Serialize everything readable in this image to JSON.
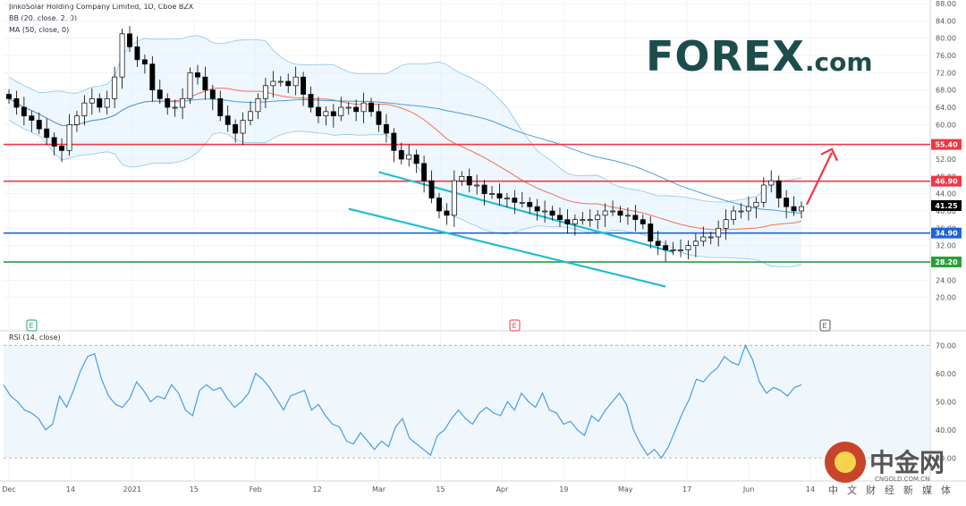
{
  "header": {
    "title": "JinkoSolar Holding Company Limited, 1D, Cboe BZX",
    "bb_label": "BB (20, close, 2, 0)",
    "ma_label": "MA (50, close, 0)",
    "rsi_label": "RSI (14, close)"
  },
  "branding": {
    "logo_text": "FOREX",
    "logo_suffix": ".com",
    "logo_color": "#1c4d4b",
    "logo_accent": "#2aa55a",
    "cn_title": "中金网",
    "cn_url": "CNGOLD.COM.CN",
    "cn_sub": "中文财经新媒体"
  },
  "chart_data": [
    {
      "type": "candlestick",
      "ylim": [
        16,
        88
      ],
      "y_ticks": [
        "20.00",
        "24.00",
        "28.00",
        "32.00",
        "36.00",
        "40.00",
        "44.00",
        "48.00",
        "52.00",
        "56.00",
        "60.00",
        "64.00",
        "68.00",
        "72.00",
        "76.00",
        "80.00",
        "84.00",
        "88.00"
      ],
      "x_ticks": [
        "Dec",
        "14",
        "2021",
        "15",
        "Feb",
        "12",
        "Mar",
        "15",
        "Apr",
        "19",
        "May",
        "17",
        "Jun",
        "14"
      ],
      "last_price": 41.25,
      "close_series": [
        66,
        64,
        62,
        61,
        59,
        57,
        55,
        54,
        60,
        62,
        65,
        66,
        64,
        66,
        71,
        81,
        78,
        75,
        74,
        68,
        66,
        64,
        64,
        66,
        72,
        71,
        68,
        66,
        62,
        60,
        58,
        61,
        63,
        66,
        69,
        70,
        70,
        69,
        71,
        67,
        64,
        62,
        63,
        62,
        64,
        64,
        63,
        65,
        63,
        60,
        58,
        54,
        52,
        53,
        51,
        47,
        43,
        40,
        39,
        47,
        48,
        46,
        46,
        44,
        44,
        43,
        43,
        42,
        42,
        41,
        40,
        40,
        39,
        38,
        37,
        38,
        38,
        38,
        39,
        40,
        40,
        39,
        39,
        38,
        37,
        33,
        32,
        31,
        31,
        31,
        32,
        33,
        34,
        34,
        36,
        38,
        40,
        40,
        41,
        42,
        46,
        47,
        43,
        41,
        40,
        41
      ],
      "horizontal_levels": [
        {
          "value": 55.4,
          "label": "55.40",
          "color": "#f23645"
        },
        {
          "value": 46.9,
          "label": "46.90",
          "color": "#f23645"
        },
        {
          "value": 34.9,
          "label": "34.90",
          "color": "#1e64d6"
        },
        {
          "value": 28.2,
          "label": "28.20",
          "color": "#2b9e3b"
        }
      ],
      "channel_lines": [
        {
          "from": [
            49,
            49.0
          ],
          "to": [
            88,
            30.5
          ]
        },
        {
          "from": [
            45,
            40.5
          ],
          "to": [
            87,
            22.5
          ]
        }
      ],
      "event_markers": [
        {
          "label": "E",
          "color": "#2b9e6a"
        },
        {
          "label": "E",
          "color": "#f23645"
        },
        {
          "label": "E",
          "color": "#555555"
        }
      ],
      "colors": {
        "up": "#ffffff",
        "down": "#000000",
        "bb": "#8ec5f0",
        "ma": "#f0705c",
        "mid": "#4e9be0",
        "channel": "#22bcd6",
        "forecast": "#f23645"
      }
    },
    {
      "type": "line",
      "name": "RSI (14, close)",
      "ylim": [
        25,
        72
      ],
      "y_ticks": [
        "30.00",
        "40.00",
        "50.00",
        "60.00",
        "70.00"
      ],
      "bands": [
        30,
        70
      ],
      "values": [
        56,
        52,
        50,
        47,
        46,
        44,
        40,
        42,
        52,
        48,
        54,
        61,
        66,
        67,
        58,
        52,
        49,
        48,
        51,
        57,
        54,
        50,
        52,
        51,
        56,
        53,
        47,
        45,
        54,
        56,
        54,
        55,
        51,
        48,
        50,
        53,
        60,
        58,
        55,
        51,
        47,
        52,
        53,
        54,
        47,
        49,
        45,
        42,
        41,
        36,
        35,
        39,
        36,
        33,
        36,
        34,
        41,
        44,
        37,
        35,
        33,
        31,
        38,
        40,
        44,
        47,
        44,
        42,
        46,
        48,
        46,
        45,
        50,
        47,
        53,
        50,
        48,
        53,
        47,
        46,
        42,
        43,
        40,
        38,
        45,
        43,
        47,
        50,
        53,
        49,
        40,
        35,
        31,
        33,
        30,
        34,
        40,
        46,
        51,
        58,
        57,
        60,
        62,
        66,
        64,
        63,
        70,
        65,
        57,
        53,
        55,
        54,
        52,
        55,
        56
      ],
      "color": "#4e9be0"
    }
  ]
}
